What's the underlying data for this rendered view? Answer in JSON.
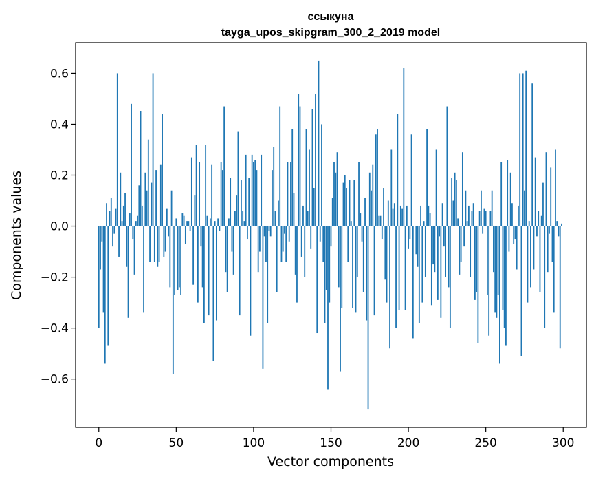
{
  "chart_data": {
    "type": "bar",
    "title": "ссыкуна",
    "subtitle": "tayga_upos_skipgram_300_2_2019 model",
    "xlabel": "Vector components",
    "ylabel": "Components values",
    "xlim": [
      -15,
      315
    ],
    "ylim": [
      -0.79,
      0.72
    ],
    "xticks": [
      0,
      50,
      100,
      150,
      200,
      250,
      300
    ],
    "xtick_labels": [
      "0",
      "50",
      "100",
      "150",
      "200",
      "250",
      "300"
    ],
    "yticks": [
      -0.6,
      -0.4,
      -0.2,
      0.0,
      0.2,
      0.4,
      0.6
    ],
    "ytick_labels": [
      "−0.6",
      "−0.4",
      "−0.2",
      "0.0",
      "0.2",
      "0.4",
      "0.6"
    ],
    "grid": false,
    "bar_color": "#1f77b4",
    "values": [
      -0.4,
      -0.17,
      -0.06,
      -0.34,
      -0.54,
      0.09,
      -0.47,
      0.06,
      0.11,
      -0.08,
      -0.03,
      0.07,
      0.6,
      -0.12,
      0.21,
      0.02,
      0.08,
      0.13,
      -0.16,
      -0.36,
      0.05,
      0.48,
      -0.05,
      -0.19,
      0.02,
      0.04,
      0.16,
      0.45,
      0.08,
      -0.34,
      0.21,
      0.14,
      0.34,
      -0.14,
      0.17,
      0.6,
      -0.14,
      0.22,
      -0.16,
      -0.14,
      0.24,
      0.44,
      -0.12,
      -0.1,
      0.07,
      -0.04,
      -0.24,
      0.14,
      -0.58,
      -0.27,
      0.03,
      -0.25,
      -0.24,
      -0.27,
      0.05,
      0.04,
      -0.07,
      0.02,
      0.02,
      -0.02,
      0.27,
      -0.23,
      0.12,
      0.32,
      -0.3,
      0.25,
      -0.08,
      -0.24,
      -0.38,
      0.32,
      0.04,
      -0.35,
      0.03,
      0.24,
      -0.53,
      0.02,
      -0.37,
      0.03,
      -0.02,
      0.25,
      0.22,
      0.47,
      -0.18,
      -0.26,
      0.03,
      0.19,
      -0.1,
      -0.19,
      0.06,
      0.12,
      0.37,
      -0.35,
      0.18,
      0.06,
      0.02,
      0.28,
      -0.05,
      0.19,
      -0.43,
      0.28,
      0.25,
      0.26,
      0.22,
      -0.18,
      -0.1,
      0.28,
      -0.56,
      -0.04,
      -0.14,
      -0.38,
      -0.02,
      -0.04,
      0.22,
      0.31,
      0.06,
      -0.26,
      0.1,
      0.47,
      -0.14,
      -0.1,
      -0.03,
      -0.14,
      0.25,
      -0.06,
      0.25,
      0.38,
      0.13,
      -0.19,
      -0.3,
      0.52,
      0.47,
      -0.12,
      0.08,
      -0.2,
      0.38,
      0.06,
      0.3,
      -0.09,
      0.46,
      0.15,
      0.52,
      -0.42,
      0.65,
      -0.06,
      0.4,
      -0.14,
      -0.38,
      -0.25,
      -0.64,
      -0.3,
      -0.08,
      0.11,
      0.25,
      0.21,
      0.29,
      -0.24,
      -0.57,
      -0.32,
      0.17,
      0.2,
      0.15,
      -0.14,
      0.18,
      0.02,
      -0.32,
      0.18,
      -0.34,
      -0.2,
      0.25,
      0.05,
      -0.06,
      -0.26,
      0.11,
      -0.37,
      -0.72,
      0.21,
      0.14,
      0.24,
      -0.35,
      0.36,
      0.38,
      0.04,
      0.04,
      -0.05,
      0.15,
      -0.21,
      -0.3,
      0.1,
      -0.48,
      0.3,
      0.07,
      0.09,
      -0.4,
      0.44,
      -0.33,
      0.08,
      0.07,
      0.62,
      -0.33,
      0.08,
      -0.09,
      -0.05,
      0.36,
      -0.44,
      0.0,
      -0.11,
      -0.16,
      -0.38,
      0.08,
      -0.3,
      0.02,
      -0.2,
      0.38,
      0.08,
      0.05,
      -0.31,
      -0.15,
      -0.18,
      0.3,
      -0.29,
      -0.04,
      -0.36,
      0.09,
      -0.08,
      -0.2,
      0.47,
      -0.24,
      -0.4,
      0.19,
      0.1,
      0.21,
      0.18,
      0.03,
      -0.19,
      -0.14,
      0.29,
      -0.08,
      0.14,
      0.02,
      0.08,
      -0.2,
      0.06,
      0.09,
      -0.29,
      -0.26,
      -0.46,
      0.06,
      0.14,
      -0.03,
      0.07,
      0.06,
      -0.27,
      -0.43,
      0.06,
      0.14,
      -0.18,
      -0.34,
      -0.36,
      -0.27,
      -0.54,
      0.25,
      -0.33,
      -0.4,
      -0.47,
      0.26,
      -0.1,
      0.21,
      0.09,
      -0.07,
      -0.05,
      -0.17,
      0.08,
      0.6,
      -0.51,
      0.6,
      0.14,
      0.61,
      -0.3,
      0.02,
      -0.24,
      0.56,
      -0.17,
      0.27,
      -0.04,
      0.06,
      -0.26,
      0.04,
      0.17,
      -0.4,
      0.29,
      -0.18,
      -0.03,
      0.23,
      -0.14,
      -0.34,
      0.3,
      0.02,
      -0.04,
      -0.48,
      0.01
    ]
  }
}
